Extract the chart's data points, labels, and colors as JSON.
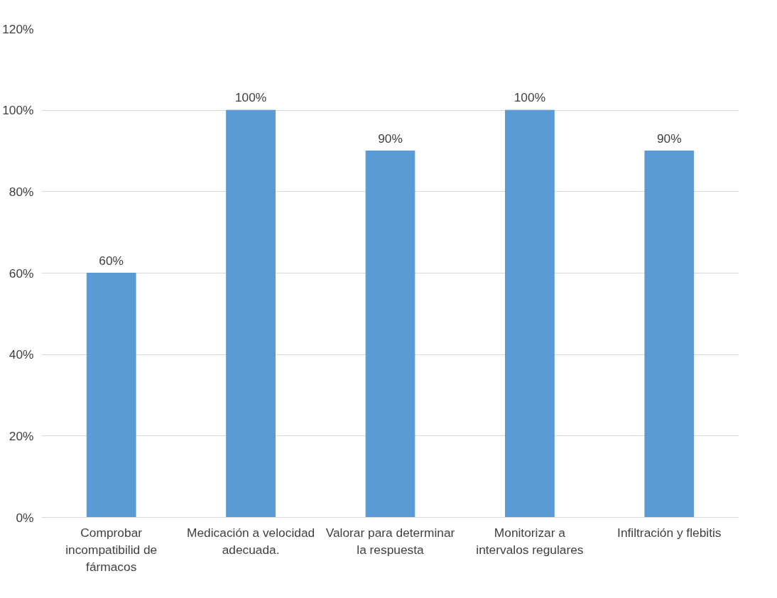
{
  "chart_data": {
    "type": "bar",
    "categories": [
      "Comprobar incompatibilid de fármacos",
      "Medicación a velocidad adecuada.",
      "Valorar para determinar la respuesta",
      "Monitorizar a intervalos regulares",
      "Infiltración y flebitis"
    ],
    "values": [
      60,
      100,
      90,
      100,
      90
    ],
    "value_labels": [
      "60%",
      "100%",
      "90%",
      "100%",
      "90%"
    ],
    "color": "#5b9bd5",
    "ylim": [
      0,
      120
    ],
    "yticks": [
      {
        "value": 0,
        "label": "0%"
      },
      {
        "value": 20,
        "label": "20%"
      },
      {
        "value": 40,
        "label": "40%"
      },
      {
        "value": 60,
        "label": "60%"
      },
      {
        "value": 80,
        "label": "80%"
      },
      {
        "value": 100,
        "label": "100%"
      },
      {
        "value": 120,
        "label": "120%"
      }
    ],
    "grid": "y"
  }
}
